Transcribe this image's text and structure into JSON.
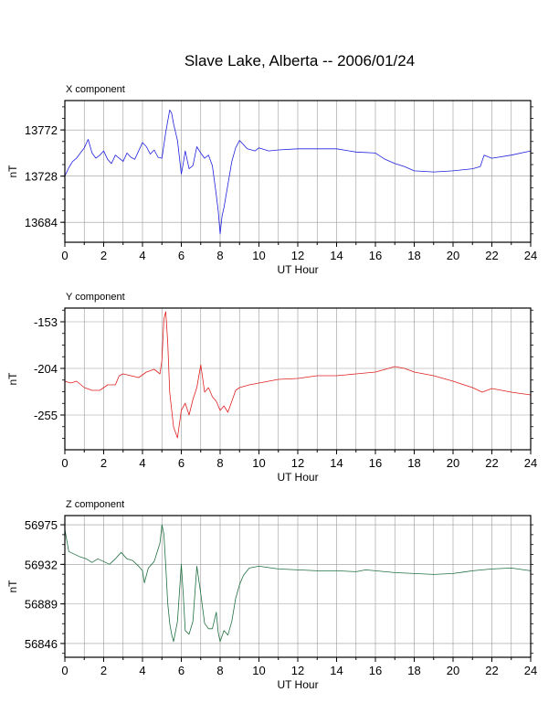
{
  "title": "Slave Lake, Alberta -- 2006/01/24",
  "colors": {
    "x": "#2020e0",
    "y": "#e02020",
    "z": "#207040",
    "grid": "#9a9a9a",
    "axis": "#000000"
  },
  "chart_data": [
    {
      "type": "line",
      "label": "X component",
      "xlabel": "UT Hour",
      "ylabel": "nT",
      "xlim": [
        0,
        24
      ],
      "ylim": [
        13665,
        13800
      ],
      "xticks": [
        0,
        2,
        4,
        6,
        8,
        10,
        12,
        14,
        16,
        18,
        20,
        22,
        24
      ],
      "yticks": [
        13684,
        13728,
        13772
      ],
      "grid": true,
      "series": [
        {
          "color": "#2020e0",
          "x": [
            0,
            0.2,
            0.4,
            0.6,
            0.8,
            1.0,
            1.2,
            1.4,
            1.6,
            1.8,
            2.0,
            2.2,
            2.4,
            2.6,
            2.8,
            3.0,
            3.2,
            3.4,
            3.6,
            3.8,
            4.0,
            4.2,
            4.4,
            4.6,
            4.8,
            5.0,
            5.2,
            5.4,
            5.5,
            5.6,
            5.8,
            6.0,
            6.1,
            6.2,
            6.4,
            6.6,
            6.8,
            7.0,
            7.2,
            7.4,
            7.6,
            7.8,
            7.9,
            8.0,
            8.1,
            8.2,
            8.4,
            8.6,
            8.8,
            9.0,
            9.4,
            9.8,
            10.0,
            10.5,
            11.0,
            12.0,
            13.0,
            14.0,
            15.0,
            16.0,
            16.5,
            17.0,
            17.5,
            18.0,
            19.0,
            20.0,
            21.0,
            21.4,
            21.6,
            22.0,
            23.0,
            24.0
          ],
          "y": [
            13728,
            13736,
            13742,
            13745,
            13750,
            13755,
            13763,
            13750,
            13745,
            13748,
            13752,
            13744,
            13740,
            13748,
            13745,
            13742,
            13750,
            13746,
            13744,
            13752,
            13760,
            13756,
            13749,
            13753,
            13746,
            13745,
            13770,
            13791,
            13788,
            13778,
            13762,
            13730,
            13740,
            13752,
            13735,
            13738,
            13756,
            13750,
            13745,
            13748,
            13738,
            13710,
            13695,
            13673,
            13690,
            13698,
            13720,
            13742,
            13755,
            13762,
            13754,
            13752,
            13755,
            13752,
            13753,
            13754,
            13754,
            13754,
            13751,
            13750,
            13744,
            13740,
            13737,
            13733,
            13732,
            13733,
            13735,
            13737,
            13748,
            13745,
            13748,
            13752
          ]
        }
      ]
    },
    {
      "type": "line",
      "label": "Y component",
      "xlabel": "UT Hour",
      "ylabel": "nT",
      "xlim": [
        0,
        24
      ],
      "ylim": [
        -293,
        -138
      ],
      "xticks": [
        0,
        2,
        4,
        6,
        8,
        10,
        12,
        14,
        16,
        18,
        20,
        22,
        24
      ],
      "yticks": [
        -255,
        -204,
        -153
      ],
      "grid": true,
      "series": [
        {
          "color": "#e02020",
          "x": [
            0,
            0.3,
            0.6,
            1.0,
            1.4,
            1.8,
            2.2,
            2.6,
            2.8,
            3.0,
            3.4,
            3.8,
            4.2,
            4.6,
            4.9,
            5.0,
            5.1,
            5.2,
            5.3,
            5.4,
            5.6,
            5.8,
            6.0,
            6.2,
            6.4,
            6.6,
            6.8,
            7.0,
            7.2,
            7.4,
            7.6,
            7.8,
            8.0,
            8.2,
            8.4,
            8.6,
            8.8,
            9.0,
            9.5,
            10.0,
            11.0,
            12.0,
            13.0,
            14.0,
            15.0,
            16.0,
            16.5,
            17.0,
            17.5,
            18.0,
            19.0,
            20.0,
            21.0,
            21.5,
            22.0,
            23.0,
            24.0
          ],
          "y": [
            -218,
            -220,
            -218,
            -225,
            -228,
            -228,
            -222,
            -222,
            -212,
            -210,
            -212,
            -214,
            -208,
            -205,
            -210,
            -195,
            -150,
            -142,
            -175,
            -230,
            -268,
            -280,
            -250,
            -242,
            -255,
            -238,
            -225,
            -200,
            -230,
            -225,
            -235,
            -240,
            -250,
            -245,
            -252,
            -240,
            -228,
            -225,
            -222,
            -220,
            -216,
            -215,
            -212,
            -212,
            -210,
            -208,
            -205,
            -202,
            -204,
            -208,
            -212,
            -218,
            -225,
            -230,
            -226,
            -230,
            -233
          ]
        }
      ]
    },
    {
      "type": "line",
      "label": "Z component",
      "xlabel": "UT Hour",
      "ylabel": "nT",
      "xlim": [
        0,
        24
      ],
      "ylim": [
        56831,
        56985
      ],
      "xticks": [
        0,
        2,
        4,
        6,
        8,
        10,
        12,
        14,
        16,
        18,
        20,
        22,
        24
      ],
      "yticks": [
        56846,
        56889,
        56932,
        56975
      ],
      "grid": true,
      "series": [
        {
          "color": "#207040",
          "x": [
            0,
            0.2,
            0.5,
            0.8,
            1.1,
            1.4,
            1.7,
            2.0,
            2.3,
            2.6,
            2.9,
            3.2,
            3.5,
            3.8,
            4.0,
            4.1,
            4.3,
            4.6,
            4.9,
            5.0,
            5.1,
            5.2,
            5.3,
            5.4,
            5.5,
            5.6,
            5.8,
            6.0,
            6.1,
            6.2,
            6.4,
            6.6,
            6.8,
            7.0,
            7.2,
            7.4,
            7.6,
            7.8,
            7.9,
            8.0,
            8.2,
            8.4,
            8.6,
            8.8,
            9.0,
            9.2,
            9.5,
            10.0,
            11.0,
            12.0,
            13.0,
            14.0,
            15.0,
            15.5,
            16.0,
            17.0,
            18.0,
            19.0,
            20.0,
            21.0,
            22.0,
            23.0,
            24.0
          ],
          "y": [
            56970,
            56946,
            56943,
            56940,
            56938,
            56934,
            56938,
            56935,
            56932,
            56938,
            56945,
            56938,
            56936,
            56930,
            56925,
            56912,
            56928,
            56935,
            56955,
            56975,
            56965,
            56930,
            56890,
            56868,
            56856,
            56848,
            56870,
            56932,
            56900,
            56860,
            56856,
            56870,
            56930,
            56900,
            56868,
            56862,
            56862,
            56880,
            56858,
            56848,
            56860,
            56855,
            56870,
            56895,
            56910,
            56920,
            56928,
            56930,
            56927,
            56926,
            56925,
            56925,
            56924,
            56926,
            56925,
            56923,
            56922,
            56921,
            56922,
            56925,
            56927,
            56928,
            56925
          ]
        }
      ]
    }
  ]
}
